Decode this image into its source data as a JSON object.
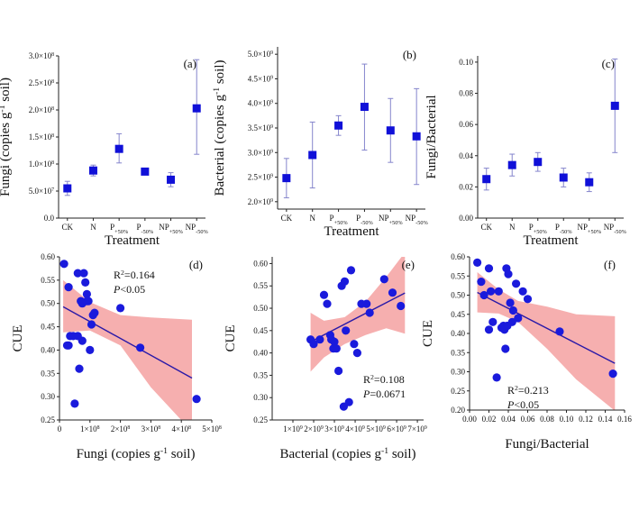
{
  "chart_data": [
    {
      "id": "a",
      "type": "scatter",
      "panel_label": "(a)",
      "xlabel": "Treatment",
      "ylabel": "Fungi (copies g⁻¹ soil)",
      "categories": [
        "CK",
        "N",
        "P+50%",
        "P-50%",
        "NP+50%",
        "NP-50%"
      ],
      "category_labels": [
        {
          "base": "CK",
          "sub": ""
        },
        {
          "base": "N",
          "sub": ""
        },
        {
          "base": "P",
          "sub": "+50%"
        },
        {
          "base": "P",
          "sub": "-50%"
        },
        {
          "base": "NP",
          "sub": "+50%"
        },
        {
          "base": "NP",
          "sub": "-50%"
        }
      ],
      "values": [
        55000000.0,
        88000000.0,
        128000000.0,
        86000000.0,
        71000000.0,
        203000000.0
      ],
      "err_low": [
        42000000.0,
        78000000.0,
        102000000.0,
        83000000.0,
        58000000.0,
        118000000.0
      ],
      "err_high": [
        68000000.0,
        98000000.0,
        156000000.0,
        89000000.0,
        84000000.0,
        293000000.0
      ],
      "ylim": [
        0,
        300000000.0
      ],
      "yticks": [
        0,
        50000000.0,
        100000000.0,
        150000000.0,
        200000000.0,
        250000000.0,
        300000000.0
      ],
      "ytick_labels": [
        {
          "m": "0.0",
          "e": ""
        },
        {
          "m": "5.0×10",
          "e": "7"
        },
        {
          "m": "1.0×10",
          "e": "8"
        },
        {
          "m": "1.5×10",
          "e": "8"
        },
        {
          "m": "2.0×10",
          "e": "8"
        },
        {
          "m": "2.5×10",
          "e": "8"
        },
        {
          "m": "3.0×10",
          "e": "8"
        }
      ],
      "marker_color": "#1010d8",
      "errorbar_color": "#8585cc"
    },
    {
      "id": "b",
      "type": "scatter",
      "panel_label": "(b)",
      "xlabel": "Treatment",
      "ylabel": "Bacterial (copies g⁻¹ soil)",
      "categories": [
        "CK",
        "N",
        "P+50%",
        "P-50%",
        "NP+50%",
        "NP-50%"
      ],
      "category_labels": [
        {
          "base": "CK",
          "sub": ""
        },
        {
          "base": "N",
          "sub": ""
        },
        {
          "base": "P",
          "sub": "+50%"
        },
        {
          "base": "P",
          "sub": "-50%"
        },
        {
          "base": "NP",
          "sub": "+50%"
        },
        {
          "base": "NP",
          "sub": "-50%"
        }
      ],
      "values": [
        2480000000.0,
        2950000000.0,
        3550000000.0,
        3930000000.0,
        3450000000.0,
        3330000000.0
      ],
      "err_low": [
        2080000000.0,
        2280000000.0,
        3350000000.0,
        3050000000.0,
        2800000000.0,
        2350000000.0
      ],
      "err_high": [
        2880000000.0,
        3620000000.0,
        3750000000.0,
        4800000000.0,
        4100000000.0,
        4300000000.0
      ],
      "ylim": [
        1850000000.0,
        5150000000.0
      ],
      "yticks": [
        2000000000.0,
        2500000000.0,
        3000000000.0,
        3500000000.0,
        4000000000.0,
        4500000000.0,
        5000000000.0
      ],
      "ytick_labels": [
        {
          "m": "2.0×10",
          "e": "9"
        },
        {
          "m": "2.5×10",
          "e": "9"
        },
        {
          "m": "3.0×10",
          "e": "9"
        },
        {
          "m": "3.5×10",
          "e": "9"
        },
        {
          "m": "4.0×10",
          "e": "9"
        },
        {
          "m": "4.5×10",
          "e": "9"
        },
        {
          "m": "5.0×10",
          "e": "9"
        }
      ],
      "marker_color": "#1010d8",
      "errorbar_color": "#8585cc"
    },
    {
      "id": "c",
      "type": "scatter",
      "panel_label": "(c)",
      "xlabel": "Treatment",
      "ylabel": "Fungi/Bacterial",
      "categories": [
        "CK",
        "N",
        "P+50%",
        "P-50%",
        "NP+50%",
        "NP-50%"
      ],
      "category_labels": [
        {
          "base": "CK",
          "sub": ""
        },
        {
          "base": "N",
          "sub": ""
        },
        {
          "base": "P",
          "sub": "+50%"
        },
        {
          "base": "P",
          "sub": "-50%"
        },
        {
          "base": "NP",
          "sub": "+50%"
        },
        {
          "base": "NP",
          "sub": "-50%"
        }
      ],
      "values": [
        0.025,
        0.034,
        0.036,
        0.026,
        0.023,
        0.072
      ],
      "err_low": [
        0.018,
        0.027,
        0.03,
        0.02,
        0.017,
        0.042
      ],
      "err_high": [
        0.032,
        0.041,
        0.042,
        0.032,
        0.029,
        0.102
      ],
      "ylim": [
        0,
        0.104
      ],
      "yticks": [
        0,
        0.02,
        0.04,
        0.06,
        0.08,
        0.1
      ],
      "ytick_labels": [
        {
          "m": "0.00",
          "e": ""
        },
        {
          "m": "0.02",
          "e": ""
        },
        {
          "m": "0.04",
          "e": ""
        },
        {
          "m": "0.06",
          "e": ""
        },
        {
          "m": "0.08",
          "e": ""
        },
        {
          "m": "0.10",
          "e": ""
        }
      ],
      "marker_color": "#1010d8",
      "errorbar_color": "#8585cc"
    },
    {
      "id": "d",
      "type": "scatter",
      "panel_label": "(d)",
      "xlabel": "Fungi (copies g⁻¹ soil)",
      "ylabel": "CUE",
      "xlim": [
        0,
        500000000.0
      ],
      "ylim": [
        0.25,
        0.6
      ],
      "xticks": [
        0,
        100000000.0,
        200000000.0,
        300000000.0,
        400000000.0,
        500000000.0
      ],
      "xtick_labels": [
        {
          "m": "0",
          "e": ""
        },
        {
          "m": "1×10",
          "e": "8"
        },
        {
          "m": "2×10",
          "e": "8"
        },
        {
          "m": "3×10",
          "e": "8"
        },
        {
          "m": "4×10",
          "e": "8"
        },
        {
          "m": "5×10",
          "e": "8"
        }
      ],
      "yticks": [
        0.25,
        0.3,
        0.35,
        0.4,
        0.45,
        0.5,
        0.55,
        0.6
      ],
      "ytick_labels": [
        "0.25",
        "0.30",
        "0.35",
        "0.40",
        "0.45",
        "0.50",
        "0.55",
        "0.60"
      ],
      "x": [
        15000000.0,
        30000000.0,
        35000000.0,
        45000000.0,
        60000000.0,
        70000000.0,
        80000000.0,
        85000000.0,
        90000000.0,
        75000000.0,
        95000000.0,
        105000000.0,
        115000000.0,
        100000000.0,
        110000000.0,
        65000000.0,
        30000000.0,
        50000000.0,
        75000000.0,
        200000000.0,
        265000000.0,
        450000000.0,
        60000000.0,
        25000000.0,
        90000000.0
      ],
      "y": [
        0.585,
        0.535,
        0.43,
        0.43,
        0.565,
        0.505,
        0.565,
        0.545,
        0.52,
        0.5,
        0.505,
        0.455,
        0.48,
        0.4,
        0.475,
        0.36,
        0.41,
        0.285,
        0.42,
        0.49,
        0.405,
        0.295,
        0.43,
        0.41,
        0.505
      ],
      "fit": {
        "x1": 12000000.0,
        "y1": 0.493,
        "x2": 435000000.0,
        "y2": 0.34
      },
      "ci_upper": [
        [
          12000000.0,
          0.55
        ],
        [
          100000000.0,
          0.503
        ],
        [
          200000000.0,
          0.475
        ],
        [
          300000000.0,
          0.47
        ],
        [
          435000000.0,
          0.465
        ]
      ],
      "ci_lower": [
        [
          12000000.0,
          0.438
        ],
        [
          100000000.0,
          0.442
        ],
        [
          200000000.0,
          0.41
        ],
        [
          300000000.0,
          0.32
        ],
        [
          435000000.0,
          0.225
        ]
      ],
      "annotation": {
        "r2": "R²=0.164",
        "p": "P<0.05"
      },
      "marker_color": "#1a1adc",
      "line_color": "#2a1aa8",
      "band_color": "#f4a1a1"
    },
    {
      "id": "e",
      "type": "scatter",
      "panel_label": "(e)",
      "xlabel": "Bacterial (copies g⁻¹ soil)",
      "ylabel": "CUE",
      "xlim": [
        0,
        7300000000.0
      ],
      "ylim": [
        0.25,
        0.615
      ],
      "xticks": [
        1000000000.0,
        2000000000.0,
        3000000000.0,
        4000000000.0,
        5000000000.0,
        6000000000.0,
        7000000000.0
      ],
      "xtick_labels": [
        {
          "m": "1×10",
          "e": "9"
        },
        {
          "m": "2×10",
          "e": "9"
        },
        {
          "m": "3×10",
          "e": "9"
        },
        {
          "m": "4×10",
          "e": "9"
        },
        {
          "m": "5×10",
          "e": "9"
        },
        {
          "m": "6×10",
          "e": "9"
        },
        {
          "m": "7×10",
          "e": "9"
        }
      ],
      "yticks": [
        0.25,
        0.3,
        0.35,
        0.4,
        0.45,
        0.5,
        0.55,
        0.6
      ],
      "ytick_labels": [
        "0.25",
        "0.30",
        "0.35",
        "0.40",
        "0.45",
        "0.50",
        "0.55",
        "0.60"
      ],
      "x": [
        1850000000.0,
        2000000000.0,
        2300000000.0,
        2500000000.0,
        2650000000.0,
        2850000000.0,
        2950000000.0,
        3100000000.0,
        3200000000.0,
        3350000000.0,
        3500000000.0,
        3550000000.0,
        3800000000.0,
        3950000000.0,
        4100000000.0,
        4300000000.0,
        4550000000.0,
        4700000000.0,
        5400000000.0,
        5800000000.0,
        6200000000.0,
        3700000000.0,
        3000000000.0,
        3450000000.0,
        2800000000.0
      ],
      "y": [
        0.43,
        0.42,
        0.43,
        0.53,
        0.51,
        0.43,
        0.41,
        0.41,
        0.36,
        0.55,
        0.56,
        0.45,
        0.585,
        0.42,
        0.4,
        0.51,
        0.51,
        0.49,
        0.565,
        0.535,
        0.505,
        0.29,
        0.425,
        0.28,
        0.44
      ],
      "fit": {
        "x1": 1850000000.0,
        "y1": 0.425,
        "x2": 6400000000.0,
        "y2": 0.534
      },
      "ci_upper": [
        [
          1850000000.0,
          0.49
        ],
        [
          2500000000.0,
          0.472
        ],
        [
          3500000000.0,
          0.48
        ],
        [
          4500000000.0,
          0.515
        ],
        [
          5500000000.0,
          0.57
        ],
        [
          6400000000.0,
          0.625
        ]
      ],
      "ci_lower": [
        [
          1850000000.0,
          0.358
        ],
        [
          2500000000.0,
          0.39
        ],
        [
          3500000000.0,
          0.42
        ],
        [
          4500000000.0,
          0.44
        ],
        [
          5500000000.0,
          0.455
        ],
        [
          6400000000.0,
          0.443
        ]
      ],
      "annotation": {
        "r2": "R²=0.108",
        "p": "P=0.0671"
      },
      "marker_color": "#1a1adc",
      "line_color": "#2a1aa8",
      "band_color": "#f4a1a1"
    },
    {
      "id": "f",
      "type": "scatter",
      "panel_label": "(f)",
      "xlabel": "Fungi/Bacterial",
      "ylabel": "CUE",
      "xlim": [
        0,
        0.16
      ],
      "ylim": [
        0.2,
        0.6
      ],
      "xticks": [
        0,
        0.02,
        0.04,
        0.06,
        0.08,
        0.1,
        0.12,
        0.14,
        0.16
      ],
      "xtick_labels": [
        {
          "m": "0.00",
          "e": ""
        },
        {
          "m": "0.02",
          "e": ""
        },
        {
          "m": "0.04",
          "e": ""
        },
        {
          "m": "0.06",
          "e": ""
        },
        {
          "m": "0.08",
          "e": ""
        },
        {
          "m": "0.10",
          "e": ""
        },
        {
          "m": "0.12",
          "e": ""
        },
        {
          "m": "0.14",
          "e": ""
        },
        {
          "m": "0.16",
          "e": ""
        }
      ],
      "yticks": [
        0.2,
        0.25,
        0.3,
        0.35,
        0.4,
        0.45,
        0.5,
        0.55,
        0.6
      ],
      "ytick_labels": [
        "0.20",
        "0.25",
        "0.30",
        "0.35",
        "0.40",
        "0.45",
        "0.50",
        "0.55",
        "0.60"
      ],
      "x": [
        0.008,
        0.012,
        0.015,
        0.02,
        0.022,
        0.024,
        0.028,
        0.03,
        0.033,
        0.035,
        0.037,
        0.038,
        0.04,
        0.042,
        0.045,
        0.048,
        0.05,
        0.055,
        0.06,
        0.036,
        0.039,
        0.044,
        0.02,
        0.093,
        0.148
      ],
      "y": [
        0.585,
        0.535,
        0.5,
        0.57,
        0.51,
        0.43,
        0.285,
        0.51,
        0.415,
        0.42,
        0.36,
        0.57,
        0.555,
        0.48,
        0.46,
        0.53,
        0.44,
        0.51,
        0.49,
        0.41,
        0.42,
        0.43,
        0.41,
        0.405,
        0.295
      ],
      "fit": {
        "x1": 0.008,
        "y1": 0.507,
        "x2": 0.15,
        "y2": 0.322
      },
      "ci_upper": [
        [
          0.008,
          0.56
        ],
        [
          0.03,
          0.515
        ],
        [
          0.05,
          0.485
        ],
        [
          0.08,
          0.47
        ],
        [
          0.11,
          0.45
        ],
        [
          0.15,
          0.445
        ]
      ],
      "ci_lower": [
        [
          0.008,
          0.455
        ],
        [
          0.03,
          0.452
        ],
        [
          0.05,
          0.43
        ],
        [
          0.08,
          0.36
        ],
        [
          0.11,
          0.28
        ],
        [
          0.15,
          0.198
        ]
      ],
      "annotation": {
        "r2": "R²=0.213",
        "p": "P<0.05"
      },
      "marker_color": "#1a1adc",
      "line_color": "#2a1aa8",
      "band_color": "#f4a1a1"
    }
  ]
}
